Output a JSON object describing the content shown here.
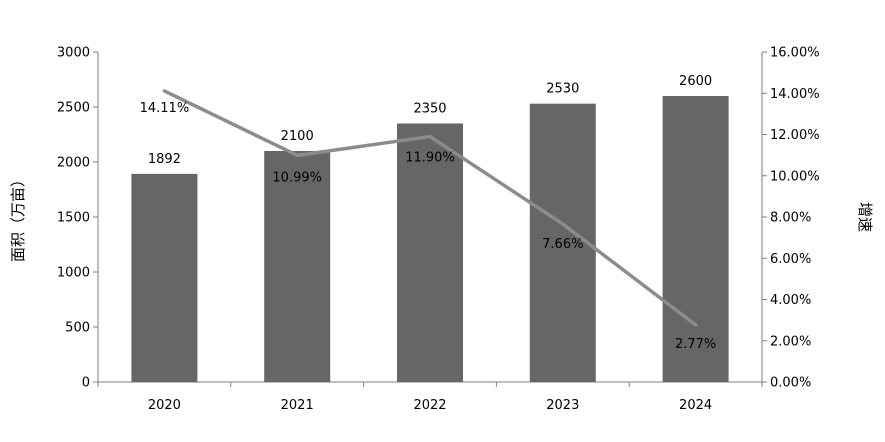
{
  "chart_data": {
    "type": "bar+line",
    "categories": [
      "2020",
      "2021",
      "2022",
      "2023",
      "2024"
    ],
    "bar_series": {
      "values": [
        1892,
        2100,
        2350,
        2530,
        2600
      ],
      "labels": [
        "1892",
        "2100",
        "2350",
        "2530",
        "2600"
      ],
      "color": "#666666"
    },
    "line_series": {
      "values": [
        14.11,
        10.99,
        11.9,
        7.66,
        2.77
      ],
      "labels": [
        "14.11%",
        "10.99%",
        "11.90%",
        "7.66%",
        "2.77%"
      ],
      "color": "#8c8c8c"
    },
    "ylabel_left": "面积（万亩）",
    "ylabel_right": "增速",
    "ylim_left": [
      0,
      3000
    ],
    "ylim_right": [
      0,
      16
    ],
    "yticks_left": [
      "0",
      "500",
      "1000",
      "1500",
      "2000",
      "2500",
      "3000"
    ],
    "yticks_right": [
      "0.00%",
      "2.00%",
      "4.00%",
      "6.00%",
      "8.00%",
      "10.00%",
      "12.00%",
      "14.00%",
      "16.00%"
    ],
    "grid": false,
    "legend": "none"
  }
}
